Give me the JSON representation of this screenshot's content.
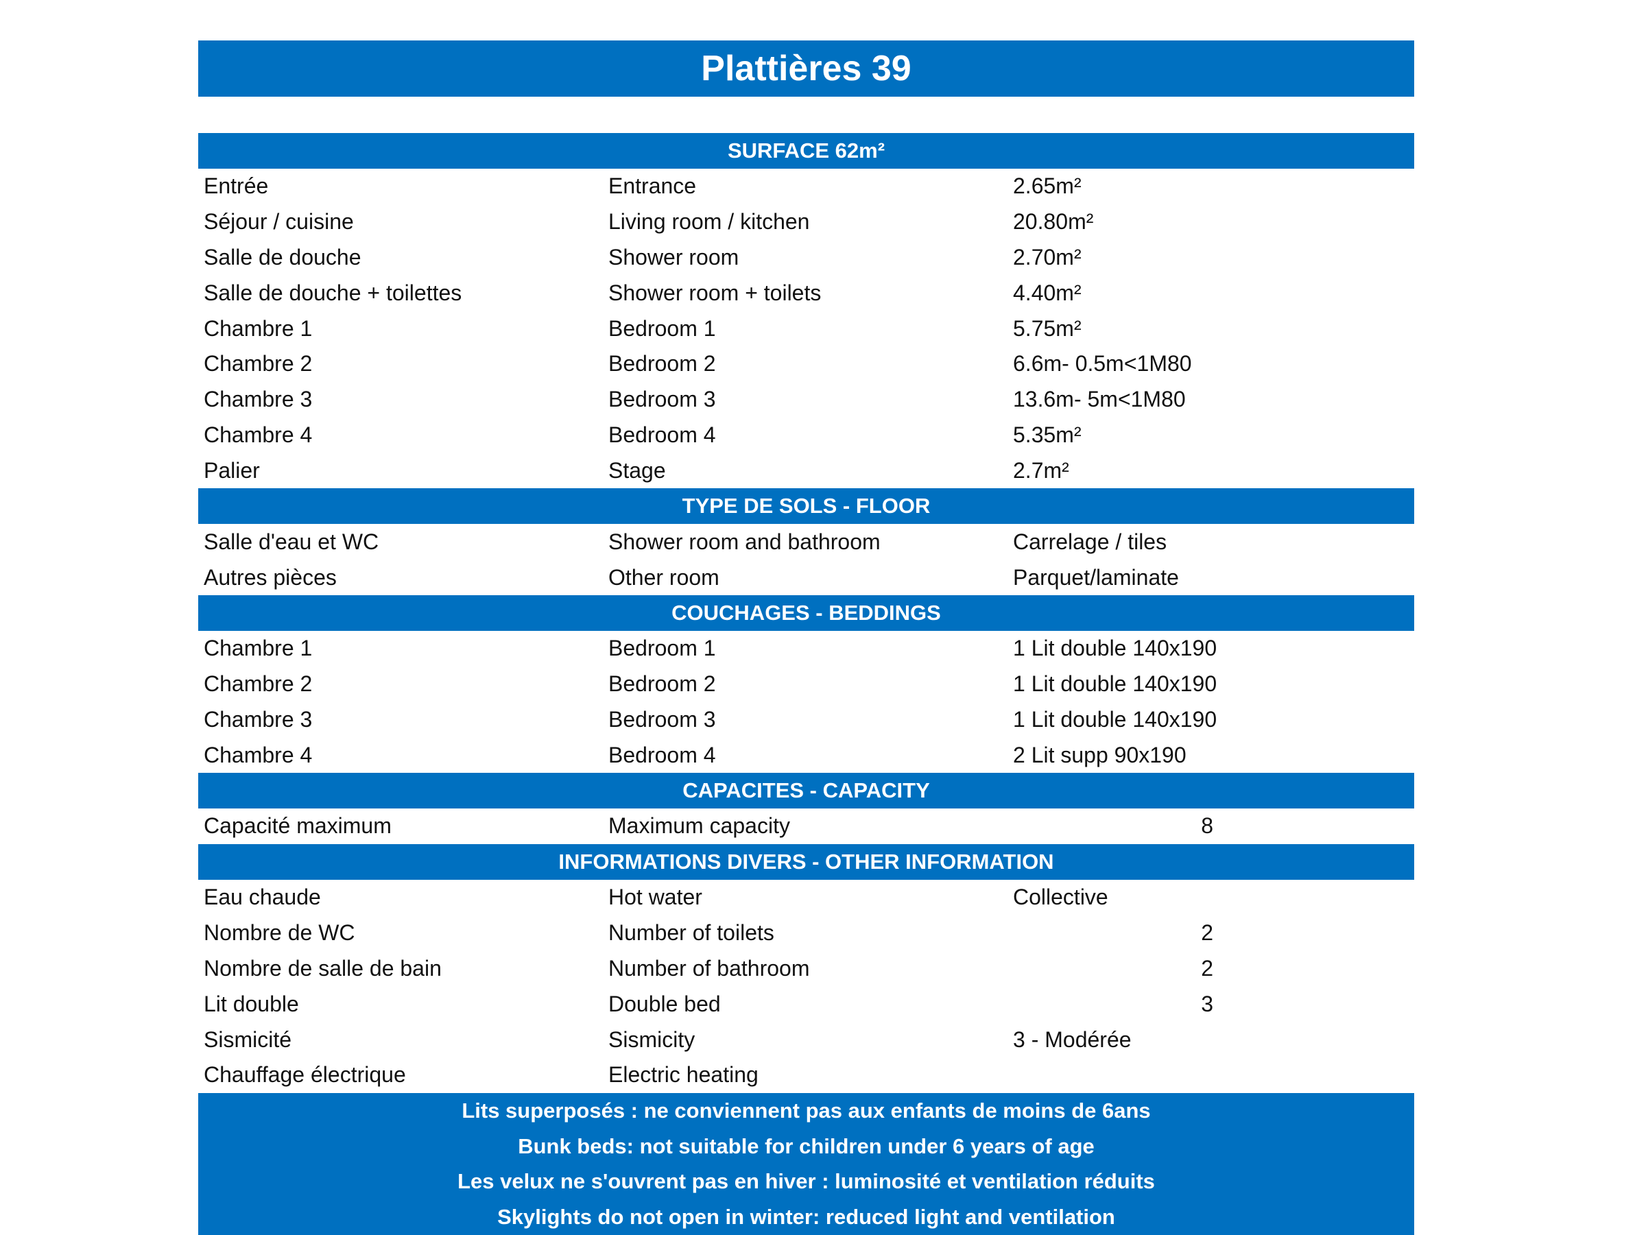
{
  "title": "Plattières 39",
  "brand_color": "#0070C0",
  "sections": [
    {
      "header": "SURFACE 62m²",
      "rows": [
        {
          "fr": "Entrée",
          "en": "Entrance",
          "value": "2.65m²"
        },
        {
          "fr": "Séjour / cuisine",
          "en": "Living room / kitchen",
          "value": "20.80m²"
        },
        {
          "fr": "Salle de douche",
          "en": "Shower room",
          "value": "2.70m²"
        },
        {
          "fr": "Salle de douche + toilettes",
          "en": "Shower room + toilets",
          "value": "4.40m²"
        },
        {
          "fr": "Chambre 1",
          "en": "Bedroom 1",
          "value": "5.75m²"
        },
        {
          "fr": "Chambre 2",
          "en": "Bedroom 2",
          "value": "6.6m- 0.5m<1M80"
        },
        {
          "fr": "Chambre 3",
          "en": "Bedroom 3",
          "value": "13.6m- 5m<1M80"
        },
        {
          "fr": "Chambre 4",
          "en": "Bedroom 4",
          "value": "5.35m²"
        },
        {
          "fr": "Palier",
          "en": "Stage",
          "value": "2.7m²"
        }
      ]
    },
    {
      "header": "TYPE DE SOLS - FLOOR",
      "rows": [
        {
          "fr": "Salle d'eau et WC",
          "en": "Shower room and bathroom",
          "value": "Carrelage / tiles"
        },
        {
          "fr": "Autres pièces",
          "en": "Other room",
          "value": "Parquet/laminate"
        }
      ]
    },
    {
      "header": "COUCHAGES - BEDDINGS",
      "rows": [
        {
          "fr": "Chambre 1",
          "en": "Bedroom 1",
          "value": "1 Lit double 140x190"
        },
        {
          "fr": "Chambre 2",
          "en": "Bedroom 2",
          "value": "1 Lit double 140x190"
        },
        {
          "fr": "Chambre 3",
          "en": "Bedroom 3",
          "value": "1 Lit double 140x190"
        },
        {
          "fr": "Chambre 4",
          "en": "Bedroom 4",
          "value": "2 Lit supp 90x190"
        }
      ]
    },
    {
      "header": "CAPACITES - CAPACITY",
      "rows": [
        {
          "fr": "Capacité maximum",
          "en": "Maximum capacity",
          "number": "8"
        }
      ]
    },
    {
      "header": "INFORMATIONS DIVERS - OTHER INFORMATION",
      "rows": [
        {
          "fr": "Eau chaude",
          "en": "Hot water",
          "value": "Collective"
        },
        {
          "fr": "Nombre de WC",
          "en": "Number of toilets",
          "number": "2"
        },
        {
          "fr": "Nombre de salle de bain",
          "en": "Number of bathroom",
          "number": "2"
        },
        {
          "fr": "Lit double",
          "en": "Double bed",
          "number": "3"
        },
        {
          "fr": "Sismicité",
          "en": "Sismicity",
          "value": "3 - Modérée"
        },
        {
          "fr": "Chauffage électrique",
          "en": "Electric heating",
          "value": ""
        }
      ]
    }
  ],
  "notes": [
    "Lits superposés : ne conviennent pas aux enfants de moins de 6ans",
    "Bunk beds: not suitable for children under 6 years of age",
    "Les velux ne s'ouvrent pas en hiver : luminosité et ventilation réduits",
    "Skylights do not open in winter: reduced light and ventilation"
  ]
}
